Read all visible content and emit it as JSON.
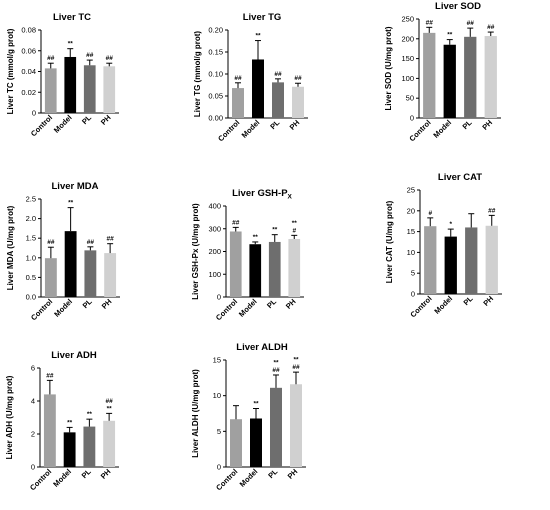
{
  "chart_data": [
    {
      "type": "bar",
      "title": "Liver  TC",
      "ylabel": "Liver TC (mmol/g prot)",
      "ylim": [
        0,
        0.08
      ],
      "yticks": [
        0,
        0.02,
        0.04,
        0.06,
        0.08
      ],
      "ytick_labels": [
        "0",
        "0.02",
        "0.04",
        "0.06",
        "0.08"
      ],
      "categories": [
        "Control",
        "Model",
        "PL",
        "PH"
      ],
      "values": [
        0.043,
        0.054,
        0.046,
        0.045
      ],
      "errors": [
        0.005,
        0.008,
        0.005,
        0.003
      ],
      "annotations": [
        [
          "##"
        ],
        [
          "**"
        ],
        [
          "##"
        ],
        [
          "##"
        ]
      ],
      "colors": [
        "#a0a0a0",
        "#000000",
        "#6e6e6e",
        "#d0d0d0"
      ]
    },
    {
      "type": "bar",
      "title": "Liver  TG",
      "ylabel": "Liver TG (mmol/g prot)",
      "ylim": [
        0,
        0.2
      ],
      "yticks": [
        0,
        0.05,
        0.1,
        0.15,
        0.2
      ],
      "ytick_labels": [
        "0.00",
        "0.05",
        "0.10",
        "0.15",
        "0.20"
      ],
      "categories": [
        "Control",
        "Model",
        "PL",
        "PH"
      ],
      "values": [
        0.068,
        0.133,
        0.081,
        0.071
      ],
      "errors": [
        0.012,
        0.043,
        0.008,
        0.008
      ],
      "annotations": [
        [
          "##"
        ],
        [
          "**"
        ],
        [
          "##"
        ],
        [
          "##"
        ]
      ],
      "colors": [
        "#a0a0a0",
        "#000000",
        "#6e6e6e",
        "#d0d0d0"
      ]
    },
    {
      "type": "bar",
      "title": "Liver SOD",
      "ylabel": "Liver SOD (U/mg prot)",
      "ylim": [
        0,
        250
      ],
      "yticks": [
        0,
        50,
        100,
        150,
        200,
        250
      ],
      "ytick_labels": [
        "0",
        "50",
        "100",
        "150",
        "200",
        "250"
      ],
      "categories": [
        "Control",
        "Model",
        "PL",
        "PH"
      ],
      "values": [
        215,
        185,
        205,
        207
      ],
      "errors": [
        14,
        13,
        22,
        10
      ],
      "annotations": [
        [
          "##"
        ],
        [
          "**"
        ],
        [
          "##"
        ],
        [
          "##"
        ]
      ],
      "colors": [
        "#a0a0a0",
        "#000000",
        "#6e6e6e",
        "#d0d0d0"
      ]
    },
    {
      "type": "bar",
      "title": "Liver MDA",
      "ylabel": "Liver MDA (U/mg prot)",
      "ylim": [
        0,
        2.5
      ],
      "yticks": [
        0,
        0.5,
        1,
        1.5,
        2,
        2.5
      ],
      "ytick_labels": [
        "0.0",
        "0.5",
        "1.0",
        "1.5",
        "2.0",
        "2.5"
      ],
      "categories": [
        "Control",
        "Model",
        "PL",
        "PH"
      ],
      "values": [
        0.99,
        1.68,
        1.19,
        1.12
      ],
      "errors": [
        0.28,
        0.6,
        0.09,
        0.24
      ],
      "annotations": [
        [
          "##"
        ],
        [
          "**"
        ],
        [
          "##"
        ],
        [
          "##"
        ]
      ],
      "colors": [
        "#a0a0a0",
        "#000000",
        "#6e6e6e",
        "#d0d0d0"
      ]
    },
    {
      "type": "bar",
      "title": "Liver  GSH-P",
      "title_subscript": "X",
      "ylabel": "Liver GSH-Px (U/mg prot)",
      "ylim": [
        0,
        400
      ],
      "yticks": [
        0,
        100,
        200,
        300,
        400
      ],
      "ytick_labels": [
        "0",
        "100",
        "200",
        "300",
        "400"
      ],
      "categories": [
        "Control",
        "Model",
        "PL",
        "PH"
      ],
      "values": [
        288,
        232,
        242,
        255
      ],
      "errors": [
        18,
        10,
        32,
        16
      ],
      "annotations": [
        [
          "##"
        ],
        [
          "**"
        ],
        [
          "**"
        ],
        [
          "#",
          "**"
        ]
      ],
      "colors": [
        "#a0a0a0",
        "#000000",
        "#6e6e6e",
        "#d0d0d0"
      ]
    },
    {
      "type": "bar",
      "title": "Liver  CAT",
      "ylabel": "Liver CAT (U/mg prot)",
      "ylim": [
        0,
        25
      ],
      "yticks": [
        0,
        5,
        10,
        15,
        20,
        25
      ],
      "ytick_labels": [
        "0",
        "5",
        "10",
        "15",
        "20",
        "25"
      ],
      "categories": [
        "Control",
        "Model",
        "PL",
        "PH"
      ],
      "values": [
        16.3,
        13.8,
        16.0,
        16.4
      ],
      "errors": [
        2.0,
        1.8,
        3.3,
        2.5
      ],
      "annotations": [
        [
          "#"
        ],
        [
          "*"
        ],
        [],
        [
          "##"
        ]
      ],
      "colors": [
        "#a0a0a0",
        "#000000",
        "#6e6e6e",
        "#d0d0d0"
      ]
    },
    {
      "type": "bar",
      "title": "Liver  ADH",
      "ylabel": "Liver ADH (U/mg prot)",
      "ylim": [
        0,
        6
      ],
      "yticks": [
        0,
        2,
        4,
        6
      ],
      "ytick_labels": [
        "0",
        "2",
        "4",
        "6"
      ],
      "categories": [
        "Control",
        "Model",
        "PL",
        "PH"
      ],
      "values": [
        4.4,
        2.1,
        2.45,
        2.8
      ],
      "errors": [
        0.85,
        0.3,
        0.45,
        0.45
      ],
      "annotations": [
        [
          "##"
        ],
        [
          "**"
        ],
        [
          "**"
        ],
        [
          "**",
          "##"
        ]
      ],
      "colors": [
        "#a0a0a0",
        "#000000",
        "#6e6e6e",
        "#d0d0d0"
      ]
    },
    {
      "type": "bar",
      "title": "Liver  ALDH",
      "ylabel": "Liver ALDH (U/mg prot)",
      "ylim": [
        0,
        15
      ],
      "yticks": [
        0,
        5,
        10,
        15
      ],
      "ytick_labels": [
        "0",
        "5",
        "10",
        "15"
      ],
      "categories": [
        "Control",
        "Model",
        "PL",
        "PH"
      ],
      "values": [
        6.7,
        6.8,
        11.1,
        11.6
      ],
      "errors": [
        1.9,
        1.4,
        1.8,
        1.7
      ],
      "annotations": [
        [],
        [
          "**"
        ],
        [
          "##",
          "**"
        ],
        [
          "##",
          "**"
        ]
      ],
      "colors": [
        "#a0a0a0",
        "#000000",
        "#6e6e6e",
        "#d0d0d0"
      ]
    }
  ]
}
